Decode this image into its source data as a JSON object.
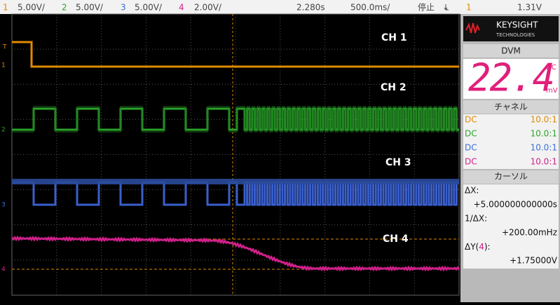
{
  "top_bar": {
    "channels": [
      {
        "number": "1",
        "scale": "5.00V/"
      },
      {
        "number": "2",
        "scale": "5.00V/"
      },
      {
        "number": "3",
        "scale": "5.00V/"
      },
      {
        "number": "4",
        "scale": "2.00V/"
      }
    ],
    "time_position": "2.280s",
    "time_scale": "500.0ms/",
    "status": "停止",
    "trigger_channel": "1",
    "trigger_level": "1.31V"
  },
  "screen": {
    "channel_labels": [
      "CH 1",
      "CH 2",
      "CH 3",
      "CH 4"
    ],
    "markers": [
      "T",
      "1",
      "2",
      "3",
      "4"
    ]
  },
  "panel": {
    "logo": "KEYSIGHT",
    "logo_sub": "TECHNOLOGIES",
    "dvm": {
      "title": "DVM",
      "reading": "22.4",
      "coupling": "DC",
      "unit": "mV"
    },
    "channels": {
      "title": "チャネル",
      "rows": [
        [
          "DC",
          "10.0:1"
        ],
        [
          "DC",
          "10.0:1"
        ],
        [
          "DC",
          "10.0:1"
        ],
        [
          "DC",
          "10.0:1"
        ]
      ]
    },
    "cursors": {
      "title": "カーソル",
      "dx_label": "ΔX:",
      "dx_value": "+5.000000000000s",
      "inv_dx_label": "1/ΔX:",
      "inv_dx_value": "+200.00mHz",
      "dy_label_prefix": "ΔY(",
      "dy_channel": "4",
      "dy_label_suffix": "):",
      "dy_value": "+1.75000V"
    }
  }
}
